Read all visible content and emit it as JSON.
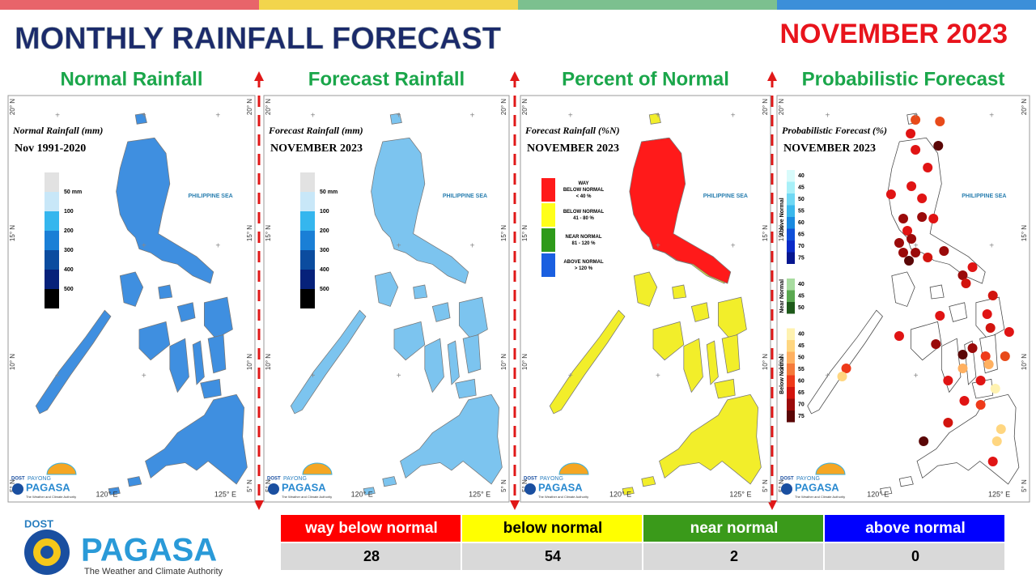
{
  "header": {
    "title": "MONTHLY RAINFALL FORECAST",
    "month": "NOVEMBER 2023"
  },
  "map_labels": {
    "lat": [
      "20° N",
      "15° N",
      "10° N",
      "5° N"
    ],
    "lon": [
      "120° E",
      "125° E"
    ],
    "sea": "PHILIPPINE SEA"
  },
  "panels": [
    {
      "heading": "Normal Rainfall",
      "map_title": "Normal Rainfall (mm)",
      "map_subtitle": "Nov 1991-2020",
      "legend": [
        "50 mm",
        "100",
        "200",
        "300",
        "400",
        "500"
      ],
      "legend_colors": [
        "#e2e2e2",
        "#c8e7f8",
        "#35b6ee",
        "#1a7fd6",
        "#0b4c9f",
        "#06217a",
        "#000000"
      ],
      "land_color": "#3f8fe0"
    },
    {
      "heading": "Forecast Rainfall",
      "map_title": "Forecast Rainfall (mm)",
      "map_subtitle": "NOVEMBER 2023",
      "legend": [
        "50 mm",
        "100",
        "200",
        "300",
        "400",
        "500"
      ],
      "legend_colors": [
        "#e2e2e2",
        "#c8e7f8",
        "#35b6ee",
        "#1a7fd6",
        "#0b4c9f",
        "#06217a",
        "#000000"
      ],
      "land_color": "#7cc4ef"
    },
    {
      "heading": "Percent of Normal",
      "map_title": "Forecast Rainfall (%N)",
      "map_subtitle": "NOVEMBER 2023",
      "legend_items": [
        {
          "lines": [
            "WAY",
            "BELOW NORMAL",
            "< 40 %"
          ],
          "color": "#ff1a1a"
        },
        {
          "lines": [
            "BELOW NORMAL",
            "41 - 80 %"
          ],
          "color": "#ffff1a"
        },
        {
          "lines": [
            "NEAR NORMAL",
            "81 - 120 %"
          ],
          "color": "#2e9a1a"
        },
        {
          "lines": [
            "ABOVE NORMAL",
            "> 120 %"
          ],
          "color": "#1a5fe0"
        }
      ],
      "land_color": "#f2ee2a"
    },
    {
      "heading": "Probabilistic Forecast",
      "map_title": "Probabilistic Forecast (%)",
      "map_subtitle": "NOVEMBER 2023",
      "legend_groups": [
        {
          "name": "Above Normal",
          "levels": [
            "40",
            "45",
            "50",
            "55",
            "60",
            "65",
            "70",
            "75"
          ],
          "colors": [
            "#d8fbfb",
            "#a8f0f8",
            "#6fd8f4",
            "#3ab8ec",
            "#1a8ae0",
            "#1050d8",
            "#0a2ac8",
            "#061690"
          ]
        },
        {
          "name": "Near Normal",
          "levels": [
            "40",
            "45",
            "50"
          ],
          "colors": [
            "#a8dca0",
            "#5aa850",
            "#1e5a1a"
          ]
        },
        {
          "name": "Below Normal",
          "levels": [
            "40",
            "45",
            "50",
            "55",
            "60",
            "65",
            "70",
            "75"
          ],
          "colors": [
            "#fff2b0",
            "#ffd680",
            "#ffb060",
            "#f57a3a",
            "#ee3a1a",
            "#d2140e",
            "#9a0a0a",
            "#5a0606"
          ]
        }
      ],
      "land_color": "#ffffff"
    }
  ],
  "table": {
    "headers": [
      "way below normal",
      "below normal",
      "near normal",
      "above normal"
    ],
    "colors": [
      "#ff0000",
      "#ffff00",
      "#3a9a1a",
      "#0000ff"
    ],
    "counts": [
      28,
      54,
      2,
      0
    ]
  },
  "logo": {
    "org": "DOST",
    "name": "PAGASA",
    "tagline": "The Weather and Climate Authority",
    "payong": "PAYONG"
  }
}
